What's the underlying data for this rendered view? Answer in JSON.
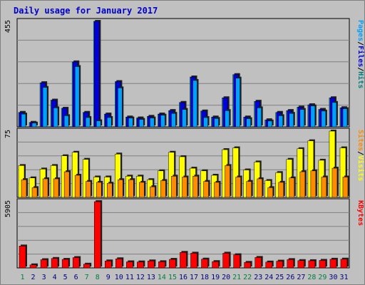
{
  "title": "Daily usage for January 2017",
  "colors": {
    "background": "#c0c0c0",
    "plot_bg": "#c0c0c0",
    "title": "#0000cc",
    "pages": "#00a0ff",
    "files": "#0000dd",
    "hits": "#008080",
    "visits": "#ffff00",
    "sites": "#ff8c00",
    "kbytes": "#ff0000",
    "weekend": "#008040",
    "weekday": "#000080"
  },
  "chart_data": [
    {
      "type": "bar",
      "panel": "hits-files-pages",
      "y_max_label": "455",
      "ylim": [
        0,
        455
      ],
      "legend_right": [
        "Pages",
        "/",
        "Files",
        "/",
        "Hits"
      ],
      "categories": [
        "1",
        "2",
        "3",
        "4",
        "5",
        "6",
        "7",
        "8",
        "9",
        "10",
        "11",
        "12",
        "13",
        "14",
        "15",
        "16",
        "17",
        "18",
        "19",
        "20",
        "21",
        "22",
        "23",
        "24",
        "25",
        "26",
        "27",
        "28",
        "29",
        "30",
        "31"
      ],
      "weekend_days": [
        "1",
        "7",
        "8",
        "14",
        "15",
        "21",
        "22",
        "28",
        "29"
      ],
      "series": [
        {
          "name": "Hits",
          "values": [
            62,
            19,
            190,
            115,
            80,
            280,
            62,
            455,
            55,
            195,
            42,
            38,
            45,
            55,
            70,
            105,
            215,
            68,
            42,
            125,
            225,
            42,
            110,
            30,
            62,
            70,
            85,
            95,
            75,
            125,
            82
          ]
        },
        {
          "name": "Files",
          "values": [
            62,
            19,
            190,
            115,
            80,
            280,
            62,
            455,
            55,
            195,
            42,
            38,
            45,
            55,
            70,
            105,
            215,
            68,
            42,
            125,
            225,
            42,
            110,
            30,
            62,
            70,
            85,
            95,
            75,
            125,
            82
          ]
        },
        {
          "name": "Pages",
          "values": [
            55,
            16,
            170,
            82,
            48,
            260,
            40,
            26,
            40,
            168,
            38,
            32,
            38,
            50,
            58,
            75,
            200,
            40,
            36,
            70,
            210,
            35,
            82,
            25,
            48,
            58,
            75,
            90,
            68,
            105,
            78
          ]
        }
      ]
    },
    {
      "type": "bar",
      "panel": "visits-sites",
      "y_max_label": "75",
      "ylim": [
        0,
        75
      ],
      "legend_right": [
        "Sites",
        "/",
        "Visits"
      ],
      "categories": [
        "1",
        "2",
        "3",
        "4",
        "5",
        "6",
        "7",
        "8",
        "9",
        "10",
        "11",
        "12",
        "13",
        "14",
        "15",
        "16",
        "17",
        "18",
        "19",
        "20",
        "21",
        "22",
        "23",
        "24",
        "25",
        "26",
        "27",
        "28",
        "29",
        "30",
        "31"
      ],
      "series": [
        {
          "name": "Visits",
          "values": [
            36,
            22,
            32,
            36,
            47,
            51,
            43,
            23,
            23,
            49,
            24,
            24,
            20,
            30,
            51,
            46,
            33,
            30,
            25,
            54,
            56,
            31,
            40,
            19,
            28,
            43,
            55,
            64,
            42,
            75,
            56
          ]
        },
        {
          "name": "Sites",
          "values": [
            20,
            11,
            21,
            21,
            29,
            25,
            18,
            17,
            16,
            20,
            20,
            17,
            12,
            19,
            24,
            23,
            24,
            18,
            17,
            36,
            23,
            18,
            21,
            11,
            17,
            22,
            29,
            30,
            23,
            33,
            23
          ]
        }
      ]
    },
    {
      "type": "bar",
      "panel": "kbytes",
      "y_max_label": "5905",
      "ylim": [
        0,
        5905
      ],
      "legend_right": [
        "KBytes"
      ],
      "categories": [
        "1",
        "2",
        "3",
        "4",
        "5",
        "6",
        "7",
        "8",
        "9",
        "10",
        "11",
        "12",
        "13",
        "14",
        "15",
        "16",
        "17",
        "18",
        "19",
        "20",
        "21",
        "22",
        "23",
        "24",
        "25",
        "26",
        "27",
        "28",
        "29",
        "30",
        "31"
      ],
      "series": [
        {
          "name": "KBytes",
          "values": [
            1950,
            270,
            730,
            840,
            760,
            920,
            330,
            5905,
            620,
            810,
            540,
            530,
            620,
            550,
            760,
            1380,
            1310,
            780,
            560,
            1310,
            1170,
            490,
            930,
            520,
            600,
            740,
            650,
            640,
            670,
            770,
            780
          ]
        }
      ]
    }
  ]
}
